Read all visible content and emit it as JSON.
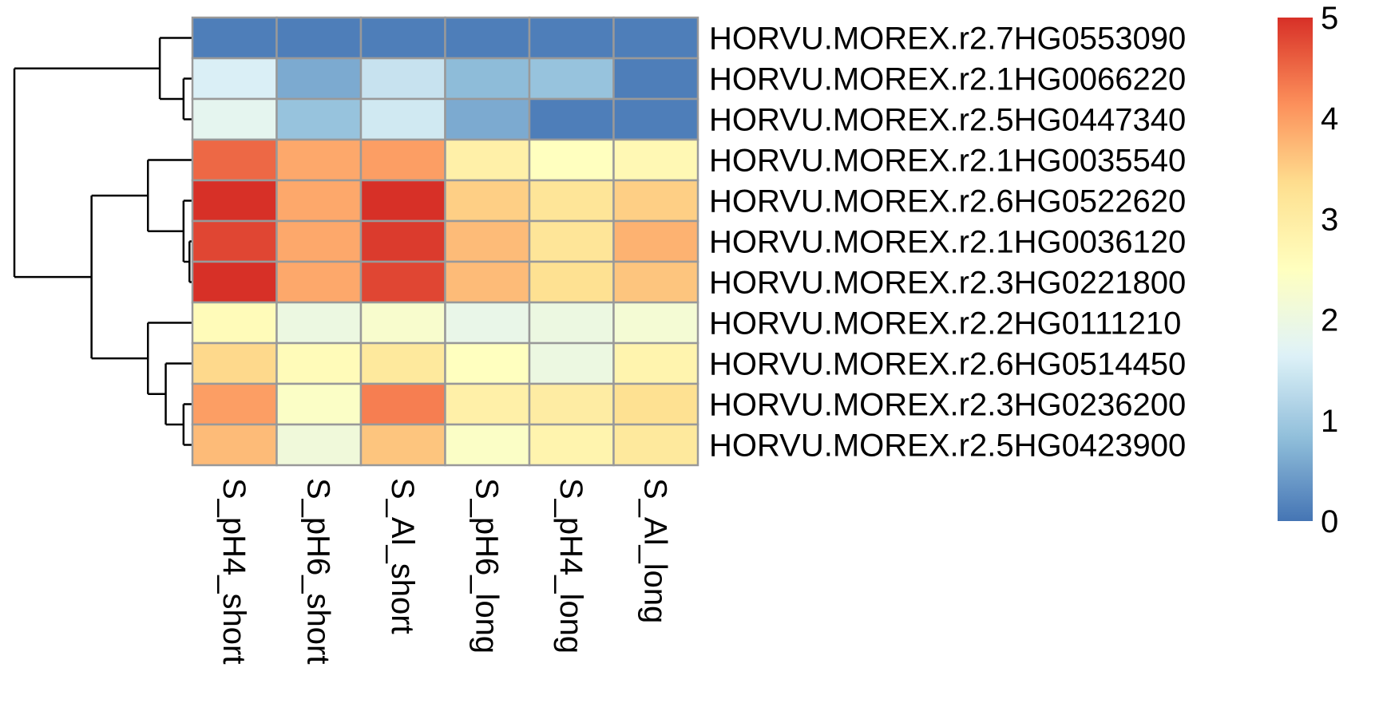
{
  "chart_data": {
    "type": "heatmap",
    "rows": [
      "HORVU.MOREX.r2.7HG0553090",
      "HORVU.MOREX.r2.1HG0066220",
      "HORVU.MOREX.r2.5HG0447340",
      "HORVU.MOREX.r2.1HG0035540",
      "HORVU.MOREX.r2.6HG0522620",
      "HORVU.MOREX.r2.1HG0036120",
      "HORVU.MOREX.r2.3HG0221800",
      "HORVU.MOREX.r2.2HG0111210",
      "HORVU.MOREX.r2.6HG0514450",
      "HORVU.MOREX.r2.3HG0236200",
      "HORVU.MOREX.r2.5HG0423900"
    ],
    "columns": [
      "S_pH4_short",
      "S_pH6_short",
      "S_Al_short",
      "S_pH6_long",
      "S_pH4_long",
      "S_Al_long"
    ],
    "values": [
      [
        0.1,
        0.1,
        0.1,
        0.1,
        0.1,
        0.1
      ],
      [
        1.6,
        0.6,
        1.4,
        0.8,
        0.9,
        0.1
      ],
      [
        1.8,
        0.9,
        1.5,
        0.6,
        0.1,
        0.1
      ],
      [
        4.5,
        3.9,
        4.0,
        2.9,
        2.5,
        2.7
      ],
      [
        5.0,
        3.9,
        5.0,
        3.5,
        3.2,
        3.5
      ],
      [
        4.8,
        3.9,
        4.9,
        3.7,
        3.2,
        3.8
      ],
      [
        5.0,
        3.9,
        4.8,
        3.7,
        3.3,
        3.6
      ],
      [
        2.6,
        2.0,
        2.3,
        1.9,
        2.0,
        2.2
      ],
      [
        3.4,
        2.6,
        3.1,
        2.5,
        2.0,
        2.8
      ],
      [
        4.0,
        2.4,
        4.3,
        2.9,
        3.0,
        3.3
      ],
      [
        3.7,
        2.1,
        3.6,
        2.4,
        2.8,
        3.1
      ]
    ],
    "color_scale": {
      "min": 0,
      "max": 5,
      "colors": [
        "#4575B4",
        "#91BFDB",
        "#E0F3F8",
        "#FFFFBF",
        "#FEE090",
        "#FC8D59",
        "#D73027"
      ]
    },
    "legend_ticks": [
      0,
      1,
      2,
      3,
      4,
      5
    ],
    "cell_border_color": "#999999",
    "row_dendrogram": {
      "heights": {
        "m12": 0.3,
        "m123": 1.1,
        "mAll": 6.0,
        "m56": 0.1,
        "m567": 0.3,
        "m4567": 1.5,
        "m1011": 0.3,
        "m91011": 0.9,
        "m8_11": 1.5,
        "mBig": 3.4
      }
    }
  }
}
